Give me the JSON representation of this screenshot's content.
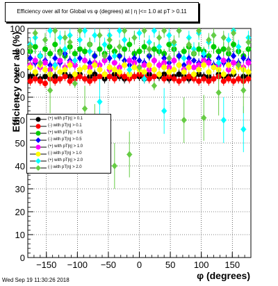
{
  "window": {
    "footer_timestamp": "Wed Sep 19 11:30:26 2018"
  },
  "chart_data": {
    "type": "scatter",
    "title": "Efficiency over all for Global vs φ (degrees) at | η |<= 1.0 at pT > 0.11",
    "xlabel": "φ (degrees)",
    "ylabel": "Efficiency over all (%)",
    "xlim": [
      -180,
      180
    ],
    "ylim": [
      0,
      100
    ],
    "xticks": [
      -150,
      -100,
      -50,
      0,
      50,
      100,
      150
    ],
    "yticks": [
      0,
      10,
      20,
      30,
      40,
      50,
      60,
      70,
      80,
      90,
      100
    ],
    "grid": true,
    "legend_position": "left-middle",
    "x": [
      -176,
      -168,
      -160,
      -152,
      -144,
      -136,
      -128,
      -120,
      -112,
      -104,
      -96,
      -88,
      -80,
      -72,
      -64,
      -56,
      -48,
      -40,
      -32,
      -24,
      -16,
      -8,
      0,
      8,
      16,
      24,
      32,
      40,
      48,
      56,
      64,
      72,
      80,
      88,
      96,
      104,
      112,
      120,
      128,
      136,
      144,
      152,
      160,
      168,
      176
    ],
    "series": [
      {
        "name": "(+) with pT|η| > 0.1",
        "color": "#000000",
        "marker": "circle",
        "values": [
          79,
          80,
          78,
          79,
          80,
          79,
          78,
          80,
          79,
          79,
          80,
          78,
          79,
          80,
          79,
          78,
          79,
          80,
          79,
          78,
          80,
          79,
          79,
          78,
          80,
          79,
          79,
          80,
          78,
          79,
          80,
          79,
          78,
          79,
          80,
          79,
          79,
          78,
          80,
          79,
          79,
          80,
          78,
          79,
          79
        ]
      },
      {
        "name": "(-) with pT|η| > 0.1",
        "color": "#ff0000",
        "marker": "circle",
        "values": [
          77,
          78,
          77,
          76,
          78,
          77,
          78,
          79,
          77,
          78,
          79,
          78,
          77,
          78,
          79,
          80,
          79,
          78,
          80,
          79,
          78,
          79,
          80,
          79,
          78,
          79,
          80,
          78,
          79,
          78,
          77,
          78,
          79,
          78,
          77,
          78,
          77,
          78,
          79,
          77,
          78,
          77,
          78,
          77,
          78
        ]
      },
      {
        "name": "(+) with pT|η| > 0.5",
        "color": "#00cc00",
        "marker": "circle",
        "values": [
          90,
          92,
          88,
          91,
          89,
          93,
          90,
          88,
          92,
          89,
          91,
          90,
          93,
          88,
          91,
          89,
          92,
          90,
          88,
          91,
          93,
          89,
          90,
          92,
          88,
          91,
          90,
          89,
          93,
          91,
          88,
          90,
          92,
          89,
          91,
          90,
          88,
          92,
          90,
          91,
          89,
          93,
          90,
          88,
          91
        ]
      },
      {
        "name": "(-) with pT|η| > 0.5",
        "color": "#0000ff",
        "marker": "diamond",
        "values": [
          87,
          85,
          88,
          86,
          84,
          87,
          85,
          89,
          86,
          84,
          87,
          86,
          85,
          88,
          84,
          86,
          87,
          85,
          88,
          86,
          84,
          87,
          86,
          85,
          88,
          86,
          84,
          87,
          85,
          86,
          88,
          84,
          87,
          86,
          85,
          88,
          86,
          84,
          87,
          85,
          86,
          88,
          85,
          87,
          86
        ]
      },
      {
        "name": "(+) with pT|η| > 1.0",
        "color": "#ff00ff",
        "marker": "circle",
        "values": [
          84,
          86,
          83,
          85,
          82,
          84,
          86,
          83,
          85,
          84,
          82,
          86,
          83,
          85,
          84,
          86,
          82,
          85,
          83,
          84,
          86,
          85,
          83,
          84,
          82,
          86,
          84,
          85,
          83,
          86,
          84,
          82,
          85,
          83,
          84,
          86,
          85,
          83,
          84,
          86,
          82,
          85,
          84,
          83,
          85
        ]
      },
      {
        "name": "(-) with pT|η| > 1.0",
        "color": "#ffff00",
        "marker": "circle",
        "values": [
          83,
          81,
          84,
          82,
          80,
          83,
          81,
          82,
          84,
          80,
          82,
          83,
          81,
          84,
          82,
          80,
          83,
          82,
          81,
          84,
          80,
          83,
          82,
          81,
          84,
          82,
          80,
          83,
          81,
          82,
          84,
          81,
          83,
          80,
          82,
          84,
          81,
          83,
          82,
          80,
          84,
          81,
          83,
          82,
          81
        ]
      },
      {
        "name": "(+) with pT|η| > 2.0",
        "color": "#00ffff",
        "marker": "diamond",
        "values": [
          93,
          96,
          88,
          95,
          99,
          84,
          96,
          91,
          97,
          86,
          95,
          99,
          90,
          97,
          68,
          93,
          97,
          88,
          99,
          95,
          82,
          96,
          98,
          78,
          94,
          99,
          92,
          64,
          97,
          93,
          99,
          87,
          96,
          91,
          98,
          89,
          94,
          97,
          85,
          60,
          95,
          99,
          92,
          56,
          96
        ]
      },
      {
        "name": "(-) with pT|η| > 2.0",
        "color": "#66cc44",
        "marker": "diamond",
        "values": [
          92,
          98,
          85,
          95,
          73,
          99,
          89,
          96,
          94,
          76,
          99,
          65,
          93,
          57,
          97,
          88,
          95,
          40,
          92,
          99,
          45,
          96,
          83,
          99,
          91,
          75,
          96,
          99,
          87,
          94,
          99,
          60,
          93,
          89,
          99,
          61,
          95,
          97,
          72,
          96,
          91,
          98,
          84,
          73,
          94
        ]
      }
    ]
  }
}
